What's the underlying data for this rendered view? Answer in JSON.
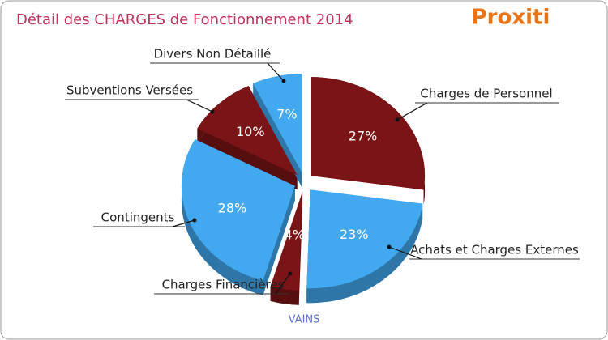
{
  "chart_data": {
    "type": "pie",
    "title": "Détail des CHARGES de Fonctionnement 2014",
    "subtitle": "VAINS",
    "logo": "Proxiti",
    "categories": [
      "Charges de Personnel",
      "Achats et Charges Externes",
      "Charges Financières",
      "Contingents",
      "Subventions Versées",
      "Divers Non Détaillé"
    ],
    "values": [
      27,
      23,
      4,
      28,
      10,
      7
    ],
    "value_labels": [
      "27%",
      "23%",
      "4%",
      "28%",
      "10%",
      "7%"
    ],
    "colors": [
      "#7b1416",
      "#42a9f0",
      "#7b1416",
      "#42a9f0",
      "#7b1416",
      "#42a9f0"
    ]
  }
}
